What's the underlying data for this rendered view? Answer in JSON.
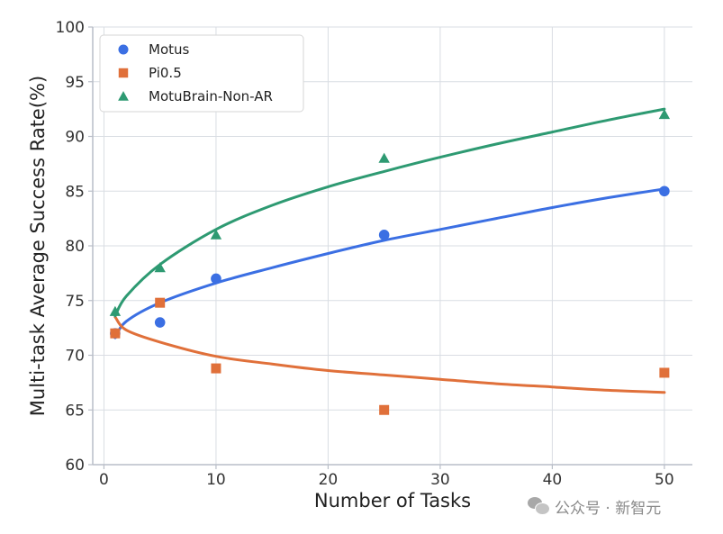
{
  "chart_data": {
    "type": "scatter",
    "xlabel": "Number of Tasks",
    "ylabel": "Multi-task Average Success Rate(%)",
    "xlim": [
      -1,
      52.5
    ],
    "ylim": [
      60,
      100
    ],
    "x_ticks": [
      0,
      10,
      20,
      30,
      40,
      50
    ],
    "y_ticks": [
      60,
      65,
      70,
      75,
      80,
      85,
      90,
      95,
      100
    ],
    "grid": true,
    "legend_position": "top-left",
    "x": [
      1,
      5,
      10,
      25,
      50
    ],
    "series": [
      {
        "name": "Motus",
        "marker": "circle",
        "color": "#3b6fe3",
        "values": [
          72,
          73,
          77,
          81,
          85
        ],
        "fit_curve": [
          [
            1,
            71.6
          ],
          [
            2,
            73.1
          ],
          [
            5,
            74.8
          ],
          [
            10,
            76.6
          ],
          [
            15,
            78.0
          ],
          [
            20,
            79.3
          ],
          [
            25,
            80.5
          ],
          [
            30,
            81.5
          ],
          [
            35,
            82.5
          ],
          [
            40,
            83.5
          ],
          [
            45,
            84.4
          ],
          [
            50,
            85.2
          ]
        ]
      },
      {
        "name": "Pi0.5",
        "marker": "square",
        "color": "#e0703a",
        "values": [
          72,
          74.8,
          68.8,
          65,
          68.4
        ],
        "fit_curve": [
          [
            1,
            73.5
          ],
          [
            2,
            72.3
          ],
          [
            5,
            71.2
          ],
          [
            10,
            69.9
          ],
          [
            15,
            69.2
          ],
          [
            20,
            68.6
          ],
          [
            25,
            68.2
          ],
          [
            30,
            67.8
          ],
          [
            35,
            67.4
          ],
          [
            40,
            67.1
          ],
          [
            45,
            66.8
          ],
          [
            50,
            66.6
          ]
        ]
      },
      {
        "name": "MotuBrain-Non-AR",
        "marker": "triangle",
        "color": "#2e9a72",
        "values": [
          74,
          78,
          81,
          88,
          92
        ],
        "fit_curve": [
          [
            1,
            73.6
          ],
          [
            2,
            75.4
          ],
          [
            5,
            78.3
          ],
          [
            10,
            81.5
          ],
          [
            15,
            83.7
          ],
          [
            20,
            85.4
          ],
          [
            25,
            86.8
          ],
          [
            30,
            88.1
          ],
          [
            35,
            89.3
          ],
          [
            40,
            90.4
          ],
          [
            45,
            91.5
          ],
          [
            50,
            92.5
          ]
        ]
      }
    ]
  },
  "watermark": {
    "icon": "wechat-icon",
    "text": "公众号 · 新智元"
  }
}
